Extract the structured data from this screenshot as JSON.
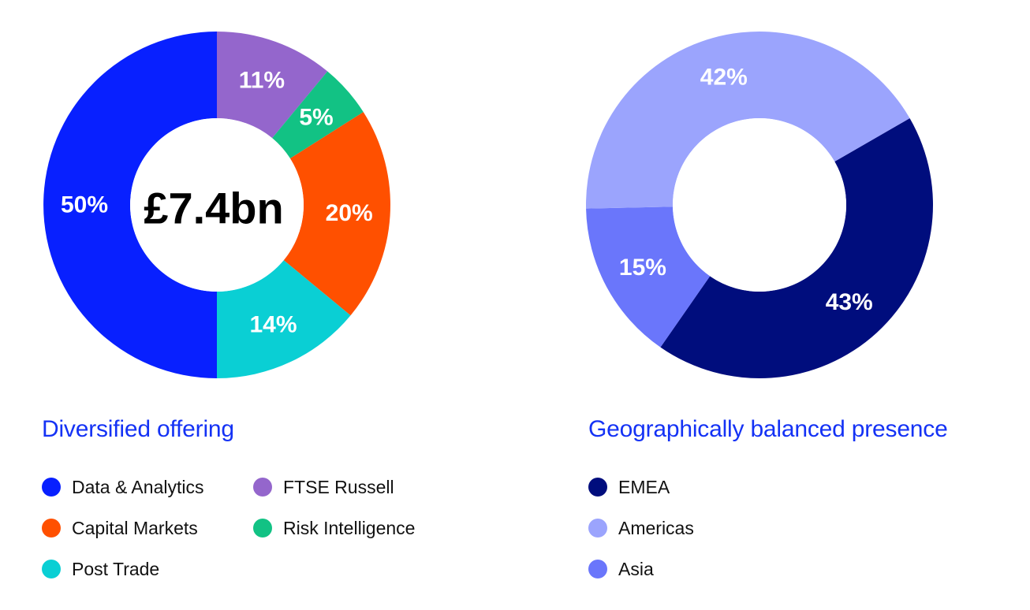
{
  "chart_data": [
    {
      "type": "pie",
      "donut": true,
      "title": "Diversified offering",
      "center_label": "£7.4bn",
      "start_angle_deg": 90,
      "direction": "clockwise",
      "slices": [
        {
          "name": "FTSE Russell",
          "value": 11,
          "label": "11%",
          "color": "#9466cc"
        },
        {
          "name": "Risk Intelligence",
          "value": 5,
          "label": "5%",
          "color": "#12c284"
        },
        {
          "name": "Capital Markets",
          "value": 20,
          "label": "20%",
          "color": "#ff5000"
        },
        {
          "name": "Post Trade",
          "value": 14,
          "label": "14%",
          "color": "#0acfd4"
        },
        {
          "name": "Data & Analytics",
          "value": 50,
          "label": "50%",
          "color": "#0820ff"
        }
      ],
      "legend": [
        {
          "name": "Data & Analytics",
          "color": "#0820ff"
        },
        {
          "name": "FTSE Russell",
          "color": "#9466cc"
        },
        {
          "name": "Capital Markets",
          "color": "#ff5000"
        },
        {
          "name": "Risk Intelligence",
          "color": "#12c284"
        },
        {
          "name": "Post Trade",
          "color": "#0acfd4"
        }
      ],
      "legend_placement": "bottom"
    },
    {
      "type": "pie",
      "donut": true,
      "title": "Geographically balanced presence",
      "center_label": "",
      "start_angle_deg": 30,
      "direction": "clockwise",
      "slices": [
        {
          "name": "EMEA",
          "value": 43,
          "label": "43%",
          "color": "#000d7d"
        },
        {
          "name": "Asia",
          "value": 15,
          "label": "15%",
          "color": "#6a76fb"
        },
        {
          "name": "Americas",
          "value": 42,
          "label": "42%",
          "color": "#9ba4fd"
        }
      ],
      "legend": [
        {
          "name": "EMEA",
          "color": "#000d7d"
        },
        {
          "name": "Americas",
          "color": "#9ba4fd"
        },
        {
          "name": "Asia",
          "color": "#6a76fb"
        }
      ],
      "legend_placement": "bottom"
    }
  ]
}
